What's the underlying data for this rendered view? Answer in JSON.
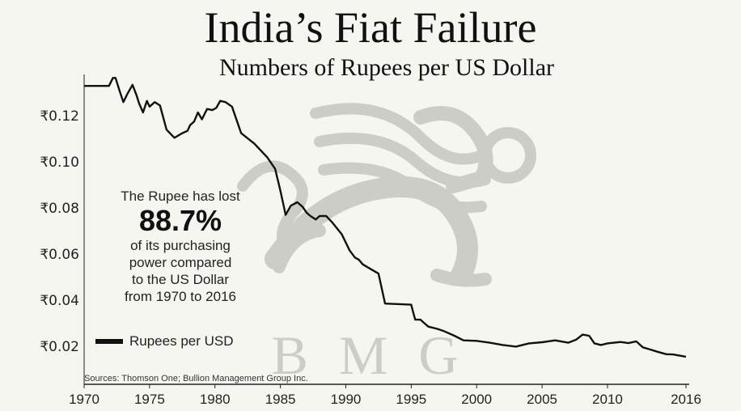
{
  "watermark": {
    "icon": "griffin-logo-icon",
    "text": "BMG",
    "color": "#c9c9c4"
  },
  "annotation": {
    "line1": "The Rupee has lost",
    "value": "88.7%",
    "line3": "of its purchasing",
    "line4": "power compared",
    "line5": "to the US Dollar",
    "line6": "from 1970 to 2016"
  },
  "source": "Sources: Thomson One; Bullion Management Group Inc.",
  "chart_data": {
    "type": "line",
    "title": "India’s Fiat Failure",
    "subtitle": "Numbers of Rupees per US Dollar",
    "xlim": [
      1970,
      2016
    ],
    "ylim": [
      0.008,
      0.138
    ],
    "xticks": [
      1970,
      1975,
      1980,
      1985,
      1990,
      1995,
      2000,
      2005,
      2010,
      2016
    ],
    "yticks": [
      {
        "value": 0.02,
        "label": "₹0.02"
      },
      {
        "value": 0.04,
        "label": "₹0.04"
      },
      {
        "value": 0.06,
        "label": "₹0.06"
      },
      {
        "value": 0.08,
        "label": "₹0.08"
      },
      {
        "value": 0.1,
        "label": "₹0.10"
      },
      {
        "value": 0.12,
        "label": "₹0.12"
      }
    ],
    "grid": false,
    "legend_position": "bottom-left",
    "line_color": "#111111",
    "series": [
      {
        "name": "Rupees per USD",
        "x": [
          1970,
          1971.9,
          1972.2,
          1972.4,
          1972.7,
          1973.0,
          1973.3,
          1973.7,
          1974.0,
          1974.2,
          1974.5,
          1974.8,
          1975.0,
          1975.4,
          1975.8,
          1976.3,
          1976.9,
          1977.5,
          1977.9,
          1978.1,
          1978.4,
          1978.7,
          1979.0,
          1979.4,
          1979.8,
          1980.1,
          1980.4,
          1980.8,
          1981.3,
          1982.0,
          1983.0,
          1984.0,
          1984.6,
          1985.0,
          1985.4,
          1985.8,
          1986.3,
          1986.7,
          1987.0,
          1987.3,
          1987.7,
          1988.0,
          1988.5,
          1989.0,
          1989.7,
          1990.3,
          1990.7,
          1991.0,
          1991.3,
          1992.5,
          1993.0,
          1995.0,
          1995.3,
          1995.7,
          1996.3,
          1997.0,
          1997.5,
          1998.3,
          1999.0,
          2000.0,
          2001.0,
          2002.0,
          2003.0,
          2004.0,
          2005.0,
          2006.0,
          2007.0,
          2007.6,
          2008.1,
          2008.6,
          2009.0,
          2009.5,
          2010.0,
          2011.0,
          2011.6,
          2012.2,
          2012.7,
          2013.3,
          2013.8,
          2014.5,
          2015.0,
          2016.0
        ],
        "y": [
          0.133,
          0.133,
          0.1365,
          0.1365,
          0.131,
          0.126,
          0.1295,
          0.1335,
          0.129,
          0.1255,
          0.1215,
          0.1265,
          0.124,
          0.126,
          0.1245,
          0.114,
          0.1105,
          0.1125,
          0.1135,
          0.116,
          0.1175,
          0.1215,
          0.1185,
          0.123,
          0.1225,
          0.1235,
          0.1265,
          0.126,
          0.124,
          0.1125,
          0.108,
          0.102,
          0.097,
          0.0875,
          0.077,
          0.081,
          0.0825,
          0.0805,
          0.078,
          0.0765,
          0.075,
          0.0765,
          0.0765,
          0.0735,
          0.0685,
          0.0615,
          0.0585,
          0.0575,
          0.0555,
          0.0515,
          0.0385,
          0.038,
          0.0315,
          0.0315,
          0.0285,
          0.0275,
          0.0265,
          0.0245,
          0.0225,
          0.0223,
          0.0215,
          0.0205,
          0.0198,
          0.0212,
          0.0217,
          0.0225,
          0.0215,
          0.0228,
          0.025,
          0.0245,
          0.0212,
          0.0205,
          0.0212,
          0.0218,
          0.0213,
          0.0221,
          0.0195,
          0.0185,
          0.0176,
          0.0165,
          0.0164,
          0.0154
        ]
      }
    ]
  }
}
